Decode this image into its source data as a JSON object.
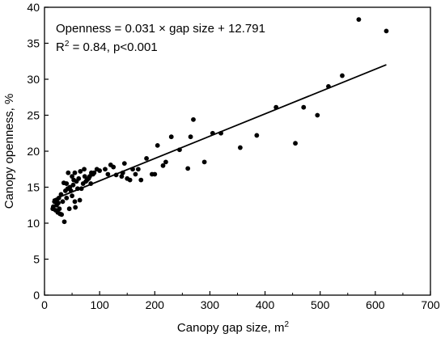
{
  "chart_data": {
    "type": "scatter",
    "title": "",
    "xlabel": "Canopy gap size, m",
    "xlabel_superscript": "2",
    "ylabel": "Canopy openness, %",
    "xlim": [
      0,
      700
    ],
    "ylim": [
      0,
      40
    ],
    "xticks": [
      0,
      100,
      200,
      300,
      400,
      500,
      600,
      700
    ],
    "yticks": [
      0,
      5,
      10,
      15,
      20,
      25,
      30,
      35,
      40
    ],
    "grid": false,
    "legend": "none",
    "annotations": {
      "equation": "Openness = 0.031 × gap size + 12.791",
      "r2_prefix": "R",
      "r2_superscript": "2",
      "r2_suffix": " = 0.84, p<0.001"
    },
    "regression": {
      "slope": 0.031,
      "intercept": 12.791,
      "x_range": [
        15,
        620
      ]
    },
    "points": [
      [
        15,
        12.0
      ],
      [
        16,
        12.3
      ],
      [
        18,
        13.0
      ],
      [
        20,
        11.8
      ],
      [
        22,
        12.5
      ],
      [
        22,
        13.2
      ],
      [
        24,
        11.5
      ],
      [
        25,
        12.8
      ],
      [
        26,
        13.5
      ],
      [
        27,
        12.0
      ],
      [
        28,
        11.3
      ],
      [
        30,
        14.0
      ],
      [
        31,
        11.2
      ],
      [
        33,
        13.0
      ],
      [
        35,
        15.6
      ],
      [
        36,
        10.2
      ],
      [
        38,
        14.5
      ],
      [
        40,
        13.5
      ],
      [
        40,
        15.5
      ],
      [
        42,
        14.8
      ],
      [
        43,
        17.0
      ],
      [
        45,
        12.0
      ],
      [
        46,
        15.0
      ],
      [
        48,
        14.5
      ],
      [
        50,
        16.5
      ],
      [
        50,
        13.8
      ],
      [
        52,
        15.3
      ],
      [
        53,
        16.0
      ],
      [
        55,
        13.0
      ],
      [
        55,
        17.0
      ],
      [
        56,
        12.2
      ],
      [
        58,
        15.8
      ],
      [
        60,
        14.8
      ],
      [
        62,
        16.2
      ],
      [
        64,
        13.2
      ],
      [
        65,
        17.2
      ],
      [
        67,
        14.8
      ],
      [
        70,
        15.5
      ],
      [
        72,
        17.5
      ],
      [
        73,
        16.5
      ],
      [
        75,
        15.8
      ],
      [
        77,
        16.0
      ],
      [
        80,
        16.2
      ],
      [
        82,
        16.5
      ],
      [
        84,
        15.5
      ],
      [
        85,
        17.0
      ],
      [
        88,
        16.8
      ],
      [
        90,
        17.0
      ],
      [
        95,
        17.5
      ],
      [
        100,
        17.3
      ],
      [
        110,
        17.5
      ],
      [
        115,
        16.8
      ],
      [
        120,
        18.1
      ],
      [
        125,
        17.8
      ],
      [
        130,
        16.7
      ],
      [
        140,
        16.5
      ],
      [
        142,
        17.0
      ],
      [
        145,
        18.3
      ],
      [
        150,
        16.2
      ],
      [
        155,
        16.0
      ],
      [
        160,
        17.5
      ],
      [
        165,
        16.8
      ],
      [
        170,
        17.5
      ],
      [
        175,
        16.0
      ],
      [
        185,
        19.0
      ],
      [
        195,
        16.8
      ],
      [
        200,
        16.8
      ],
      [
        205,
        20.8
      ],
      [
        215,
        18.0
      ],
      [
        220,
        18.5
      ],
      [
        230,
        22.0
      ],
      [
        245,
        20.2
      ],
      [
        260,
        17.6
      ],
      [
        265,
        22.0
      ],
      [
        270,
        24.4
      ],
      [
        290,
        18.5
      ],
      [
        305,
        22.5
      ],
      [
        320,
        22.5
      ],
      [
        355,
        20.5
      ],
      [
        385,
        22.2
      ],
      [
        420,
        26.1
      ],
      [
        455,
        21.1
      ],
      [
        470,
        26.1
      ],
      [
        495,
        25.0
      ],
      [
        515,
        29.0
      ],
      [
        540,
        30.5
      ],
      [
        570,
        38.3
      ],
      [
        620,
        36.7
      ]
    ]
  }
}
